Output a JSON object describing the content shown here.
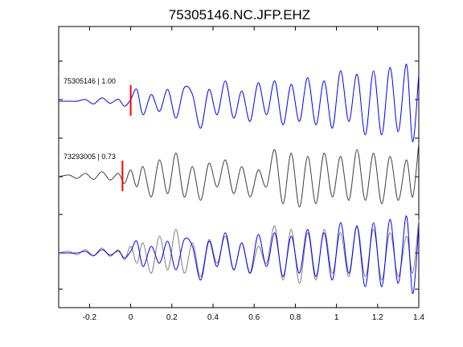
{
  "chart_data": {
    "type": "line",
    "title": "75305146.NC.JFP.EHZ",
    "xlabel": "",
    "ylabel": "",
    "xlim": [
      -0.35,
      1.4
    ],
    "xticks": [
      -0.2,
      0,
      0.2,
      0.4,
      0.6,
      0.8,
      1,
      1.2,
      1.4
    ],
    "xtick_labels": [
      "-0.2",
      "0",
      "0.2",
      "0.4",
      "0.6",
      "0.8",
      "1",
      "1.2",
      "1.4"
    ],
    "grid": false,
    "legend": "none",
    "colors": {
      "master": "#0000ff",
      "correlated": "#404040",
      "overlay_ref": "#808080",
      "pick": "#ff0000"
    },
    "traces": [
      {
        "label": "75305146 | 1.00",
        "pick_time": 0.0,
        "x": [
          -0.35,
          -0.3,
          -0.26,
          -0.22,
          -0.18,
          -0.14,
          -0.1,
          -0.06,
          -0.03,
          0.0,
          0.03,
          0.06,
          0.1,
          0.14,
          0.18,
          0.22,
          0.26,
          0.3,
          0.34,
          0.38,
          0.42,
          0.46,
          0.5,
          0.54,
          0.58,
          0.62,
          0.66,
          0.7,
          0.74,
          0.78,
          0.82,
          0.86,
          0.9,
          0.94,
          0.98,
          1.02,
          1.06,
          1.1,
          1.14,
          1.18,
          1.22,
          1.26,
          1.3,
          1.34,
          1.37,
          1.4
        ],
        "y": [
          0.0,
          0.0,
          0.0,
          0.05,
          -0.08,
          0.1,
          -0.06,
          0.06,
          -0.15,
          0.05,
          0.35,
          -0.4,
          0.2,
          -0.3,
          0.35,
          -0.5,
          0.4,
          0.2,
          -0.8,
          0.35,
          -0.4,
          0.6,
          -0.5,
          0.3,
          -0.6,
          0.55,
          -0.4,
          0.6,
          -0.7,
          0.5,
          -0.6,
          0.7,
          -0.7,
          0.6,
          -0.8,
          0.9,
          -0.6,
          0.8,
          -1.0,
          0.9,
          -1.0,
          1.0,
          -0.9,
          1.1,
          -1.2,
          0.8
        ]
      },
      {
        "label": "73293005 | 0.73",
        "pick_time": -0.04,
        "x": [
          -0.35,
          -0.3,
          -0.26,
          -0.22,
          -0.18,
          -0.14,
          -0.1,
          -0.06,
          -0.03,
          0.0,
          0.03,
          0.06,
          0.1,
          0.14,
          0.18,
          0.22,
          0.26,
          0.3,
          0.34,
          0.38,
          0.42,
          0.46,
          0.5,
          0.54,
          0.58,
          0.62,
          0.66,
          0.7,
          0.74,
          0.78,
          0.82,
          0.86,
          0.9,
          0.94,
          0.98,
          1.02,
          1.06,
          1.1,
          1.14,
          1.18,
          1.22,
          1.26,
          1.3,
          1.34,
          1.37,
          1.4
        ],
        "y": [
          0.0,
          0.05,
          -0.05,
          0.1,
          -0.08,
          0.15,
          -0.1,
          0.1,
          -0.2,
          0.2,
          -0.3,
          0.3,
          -0.6,
          0.5,
          -0.5,
          0.7,
          -0.6,
          0.3,
          -0.7,
          0.4,
          -0.3,
          0.5,
          -0.5,
          0.3,
          -0.6,
          0.2,
          -0.3,
          0.8,
          -0.8,
          0.7,
          -0.9,
          0.6,
          -0.8,
          0.7,
          -0.6,
          0.6,
          -0.7,
          0.8,
          -0.7,
          0.7,
          -0.8,
          0.6,
          -0.7,
          0.5,
          -0.6,
          1.0
        ]
      },
      {
        "label": "",
        "pick_time": null,
        "overlay": true,
        "x": [
          -0.35,
          -0.3,
          -0.26,
          -0.22,
          -0.18,
          -0.14,
          -0.1,
          -0.06,
          -0.03,
          0.0,
          0.03,
          0.06,
          0.1,
          0.14,
          0.18,
          0.22,
          0.26,
          0.3,
          0.34,
          0.38,
          0.42,
          0.46,
          0.5,
          0.54,
          0.58,
          0.62,
          0.66,
          0.7,
          0.74,
          0.78,
          0.82,
          0.86,
          0.9,
          0.94,
          0.98,
          1.02,
          1.06,
          1.1,
          1.14,
          1.18,
          1.22,
          1.26,
          1.3,
          1.34,
          1.37,
          1.4
        ],
        "y_master": [
          0.0,
          0.0,
          0.0,
          0.05,
          -0.08,
          0.1,
          -0.06,
          0.06,
          -0.15,
          0.05,
          0.35,
          -0.4,
          0.2,
          -0.3,
          0.35,
          -0.5,
          0.4,
          0.2,
          -0.8,
          0.35,
          -0.4,
          0.6,
          -0.5,
          0.3,
          -0.6,
          0.55,
          -0.4,
          0.6,
          -0.7,
          0.5,
          -0.6,
          0.7,
          -0.7,
          0.6,
          -0.8,
          0.9,
          -0.6,
          0.8,
          -1.0,
          0.9,
          -1.0,
          1.0,
          -0.9,
          1.1,
          -1.2,
          0.8
        ],
        "y_ref": [
          0.0,
          0.05,
          -0.05,
          0.1,
          -0.08,
          0.15,
          -0.1,
          0.1,
          -0.2,
          0.2,
          -0.3,
          0.3,
          -0.6,
          0.5,
          -0.5,
          0.7,
          -0.6,
          0.3,
          -0.7,
          0.4,
          -0.3,
          0.5,
          -0.5,
          0.3,
          -0.6,
          0.2,
          -0.3,
          0.8,
          -0.8,
          0.7,
          -0.9,
          0.6,
          -0.8,
          0.7,
          -0.6,
          0.6,
          -0.7,
          0.8,
          -0.7,
          0.7,
          -0.8,
          0.6,
          -0.7,
          0.5,
          -0.6,
          1.0
        ]
      }
    ]
  }
}
